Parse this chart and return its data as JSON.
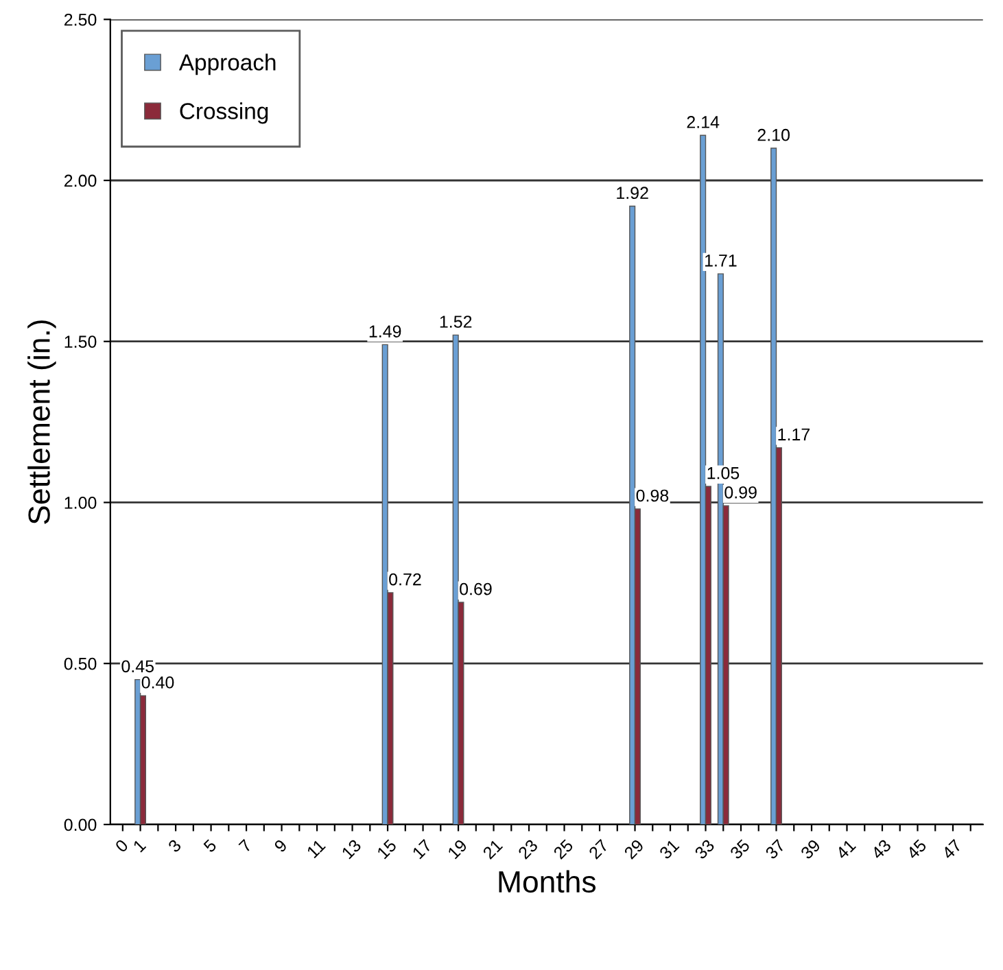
{
  "chart_data": {
    "type": "bar",
    "xlabel": "Months",
    "ylabel": "Settlement (in.)",
    "categories": [
      "0",
      "1",
      null,
      "3",
      null,
      "5",
      null,
      "7",
      null,
      "9",
      null,
      "11",
      null,
      "13",
      null,
      "15",
      null,
      "17",
      null,
      "19",
      null,
      "21",
      null,
      "23",
      null,
      "25",
      null,
      "27",
      null,
      "29",
      null,
      "31",
      null,
      "33",
      null,
      "35",
      null,
      "37",
      null,
      "39",
      null,
      "41",
      null,
      "43",
      null,
      "45",
      null,
      "47",
      null
    ],
    "series": [
      {
        "name": "Approach",
        "color": "#6a9fd4",
        "values": [
          null,
          0.45,
          null,
          null,
          null,
          null,
          null,
          null,
          null,
          null,
          null,
          null,
          null,
          null,
          null,
          1.49,
          null,
          null,
          null,
          1.52,
          null,
          null,
          null,
          null,
          null,
          null,
          null,
          null,
          null,
          1.92,
          null,
          null,
          null,
          2.14,
          1.71,
          null,
          null,
          2.1,
          null,
          null,
          null,
          null,
          null,
          null,
          null,
          null,
          null,
          null,
          null
        ],
        "value_labels": [
          null,
          "0.45",
          null,
          null,
          null,
          null,
          null,
          null,
          null,
          null,
          null,
          null,
          null,
          null,
          null,
          "1.49",
          null,
          null,
          null,
          "1.52",
          null,
          null,
          null,
          null,
          null,
          null,
          null,
          null,
          null,
          "1.92",
          null,
          null,
          null,
          "2.14",
          "1.71",
          null,
          null,
          "2.10",
          null,
          null,
          null,
          null,
          null,
          null,
          null,
          null,
          null,
          null,
          null
        ]
      },
      {
        "name": "Crossing",
        "color": "#8b2a3a",
        "values": [
          null,
          0.4,
          null,
          null,
          null,
          null,
          null,
          null,
          null,
          null,
          null,
          null,
          null,
          null,
          null,
          0.72,
          null,
          null,
          null,
          0.69,
          null,
          null,
          null,
          null,
          null,
          null,
          null,
          null,
          null,
          0.98,
          null,
          null,
          null,
          1.05,
          0.99,
          null,
          null,
          1.17,
          null,
          null,
          null,
          null,
          null,
          null,
          null,
          null,
          null,
          null,
          null
        ],
        "value_labels": [
          null,
          "0.40",
          null,
          null,
          null,
          null,
          null,
          null,
          null,
          null,
          null,
          null,
          null,
          null,
          null,
          "0.72",
          null,
          null,
          null,
          "0.69",
          null,
          null,
          null,
          null,
          null,
          null,
          null,
          null,
          null,
          "0.98",
          null,
          null,
          null,
          "1.05",
          "0.99",
          null,
          null,
          "1.17",
          null,
          null,
          null,
          null,
          null,
          null,
          null,
          null,
          null,
          null,
          null
        ]
      }
    ],
    "ylim": [
      0,
      2.5
    ],
    "yticks": [
      {
        "value": 0,
        "label": "0.00"
      },
      {
        "value": 0.5,
        "label": "0.50"
      },
      {
        "value": 1.0,
        "label": "1.00"
      },
      {
        "value": 1.5,
        "label": "1.50"
      },
      {
        "value": 2.0,
        "label": "2.00"
      },
      {
        "value": 2.5,
        "label": "2.50"
      }
    ],
    "grid": "y",
    "legend": "top left"
  }
}
